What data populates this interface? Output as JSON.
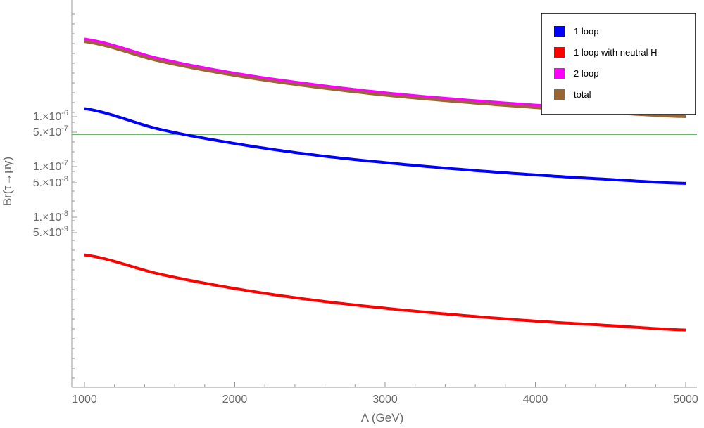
{
  "chart_data": {
    "type": "line",
    "title": "",
    "xlabel": "Λ (GeV)",
    "ylabel": "Br(τ→μγ)",
    "y_scale": "log",
    "xlim": [
      980,
      5060
    ],
    "x_ticks": [
      1000,
      2000,
      3000,
      4000,
      5000
    ],
    "x_tick_labels": [
      "1000",
      "2000",
      "3000",
      "4000",
      "5000"
    ],
    "y_ticks": [
      {
        "label": "1.×10",
        "exp": "-6"
      },
      {
        "label": "5.×10",
        "exp": "-7"
      },
      {
        "label": "1.×10",
        "exp": "-7"
      },
      {
        "label": "5.×10",
        "exp": "-8"
      },
      {
        "label": "1.×10",
        "exp": "-8"
      },
      {
        "label": "5.×10",
        "exp": "-9"
      }
    ],
    "x": [
      1000,
      1500,
      2000,
      2500,
      3000,
      3500,
      4000,
      4500,
      5000
    ],
    "series": [
      {
        "name": "1 loop",
        "color": "#0000ff",
        "values": [
          1.45e-06,
          5.6e-07,
          2.9e-07,
          1.75e-07,
          1.2e-07,
          8.8e-08,
          6.8e-08,
          5.5e-08,
          4.6e-08
        ]
      },
      {
        "name": "1 loop with neutral H",
        "color": "#ff0000",
        "values": [
          1.7e-09,
          7e-10,
          3.6e-10,
          2.15e-10,
          1.45e-10,
          1.05e-10,
          8e-11,
          6.5e-11,
          5.3e-11
        ]
      },
      {
        "name": "2 loop",
        "color": "#ff00ff",
        "values": [
          3.6e-05,
          1.45e-05,
          7.4e-06,
          4.5e-06,
          3e-06,
          2.2e-06,
          1.7e-06,
          1.35e-06,
          1.12e-06
        ]
      },
      {
        "name": "total",
        "color": "#996633",
        "values": [
          3.2e-05,
          1.3e-05,
          6.7e-06,
          4.05e-06,
          2.7e-06,
          1.98e-06,
          1.52e-06,
          1.2e-06,
          1e-06
        ]
      }
    ],
    "reference_line": {
      "name": "experimental bound",
      "color": "#33dd33",
      "value": 4.4e-07
    },
    "legend_position": "top-right"
  }
}
